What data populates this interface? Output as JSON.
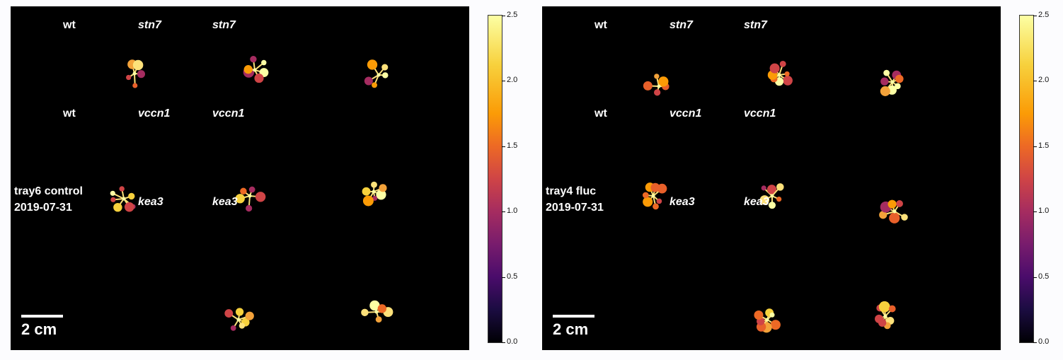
{
  "panels": [
    {
      "id": "left",
      "genotype_labels": [
        "wt",
        "stn7",
        "stn7",
        "wt",
        "vccn1",
        "vccn1",
        "kea3",
        "kea3"
      ],
      "tray": "tray6 control",
      "date": "2019-07-31",
      "scale_label": "2 cm"
    },
    {
      "id": "right",
      "genotype_labels": [
        "wt",
        "stn7",
        "stn7",
        "wt",
        "vccn1",
        "vccn1",
        "kea3",
        "kea3"
      ],
      "tray": "tray4 fluc",
      "date": "2019-07-31",
      "scale_label": "2 cm"
    }
  ],
  "colorbar": {
    "colormap": "inferno",
    "range": [
      0.0,
      2.5
    ],
    "ticks": [
      "2.5",
      "2.0",
      "1.5",
      "1.0",
      "0.5",
      "0.0"
    ]
  }
}
